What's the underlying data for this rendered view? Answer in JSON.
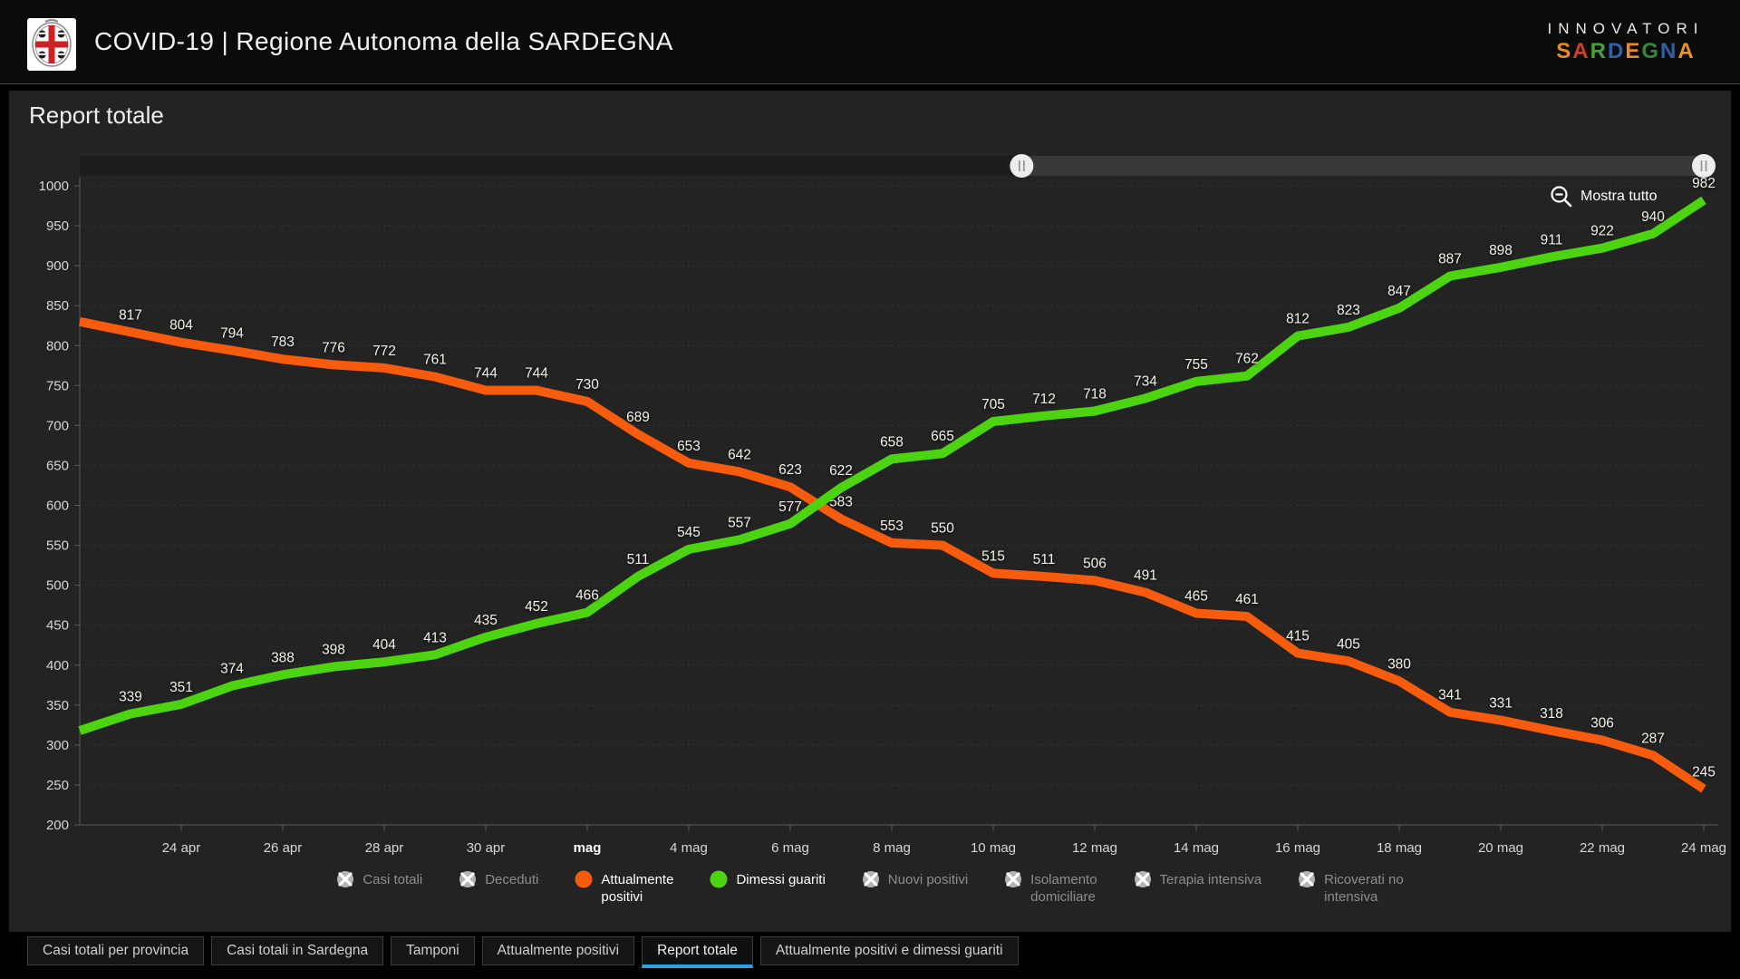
{
  "header": {
    "title": "COVID-19 | Regione Autonoma della SARDEGNA",
    "brand_line1": "INNOVATORI",
    "brand_letters": [
      {
        "ch": "S",
        "color": "#ef8b1d"
      },
      {
        "ch": "A",
        "color": "#d63c20"
      },
      {
        "ch": "R",
        "color": "#44a338"
      },
      {
        "ch": "D",
        "color": "#2d62a7"
      },
      {
        "ch": "E",
        "color": "#ef8b1d"
      },
      {
        "ch": "G",
        "color": "#2f8a33"
      },
      {
        "ch": "N",
        "color": "#2d62a7"
      },
      {
        "ch": "A",
        "color": "#e9941f"
      }
    ]
  },
  "page_title": "Report totale",
  "toolbar": {
    "show_all_label": "Mostra tutto"
  },
  "chart_data": {
    "type": "line",
    "title": "Report totale",
    "x": [
      "23 apr",
      "24 apr",
      "25 apr",
      "26 apr",
      "27 apr",
      "28 apr",
      "29 apr",
      "30 apr",
      "1 mag",
      "2 mag",
      "3 mag",
      "4 mag",
      "5 mag",
      "6 mag",
      "7 mag",
      "8 mag",
      "9 mag",
      "10 mag",
      "11 mag",
      "12 mag",
      "13 mag",
      "14 mag",
      "15 mag",
      "16 mag",
      "17 mag",
      "18 mag",
      "19 mag",
      "20 mag",
      "21 mag",
      "22 mag",
      "23 mag",
      "24 mag"
    ],
    "x_ticks": [
      {
        "i": 1,
        "label": "24 apr"
      },
      {
        "i": 3,
        "label": "26 apr"
      },
      {
        "i": 5,
        "label": "28 apr"
      },
      {
        "i": 7,
        "label": "30 apr"
      },
      {
        "i": 9,
        "label": "mag",
        "bold": true
      },
      {
        "i": 11,
        "label": "4 mag"
      },
      {
        "i": 13,
        "label": "6 mag"
      },
      {
        "i": 15,
        "label": "8 mag"
      },
      {
        "i": 17,
        "label": "10 mag"
      },
      {
        "i": 19,
        "label": "12 mag"
      },
      {
        "i": 21,
        "label": "14 mag"
      },
      {
        "i": 23,
        "label": "16 mag"
      },
      {
        "i": 25,
        "label": "18 mag"
      },
      {
        "i": 27,
        "label": "20 mag"
      },
      {
        "i": 29,
        "label": "22 mag"
      },
      {
        "i": 31,
        "label": "24 mag"
      }
    ],
    "ylim": [
      200,
      1000
    ],
    "y_ticks": [
      200,
      250,
      300,
      350,
      400,
      450,
      500,
      550,
      600,
      650,
      700,
      750,
      800,
      850,
      900,
      950,
      1000
    ],
    "grid": true,
    "legend_position": "bottom",
    "series": [
      {
        "name": "Attualmente positivi",
        "color": "#f75b0e",
        "lead_in_edge_value": 830,
        "values": [
          817,
          804,
          794,
          783,
          776,
          772,
          761,
          744,
          744,
          730,
          689,
          653,
          642,
          623,
          583,
          553,
          550,
          515,
          511,
          506,
          491,
          465,
          461,
          415,
          405,
          380,
          341,
          331,
          318,
          306,
          287,
          245
        ]
      },
      {
        "name": "Dimessi guariti",
        "color": "#4cd411",
        "lead_in_edge_value": 318,
        "values": [
          339,
          351,
          374,
          388,
          398,
          404,
          413,
          435,
          452,
          466,
          511,
          545,
          557,
          577,
          622,
          658,
          665,
          705,
          712,
          718,
          734,
          755,
          762,
          812,
          823,
          847,
          887,
          898,
          911,
          922,
          940,
          982
        ]
      }
    ],
    "scrollbar": {
      "range_start_frac": 0.58,
      "range_end_frac": 1.0
    }
  },
  "legend": {
    "items": [
      {
        "name": "Casi totali",
        "lines": [
          "Casi totali"
        ],
        "state": "disabled"
      },
      {
        "name": "Deceduti",
        "lines": [
          "Deceduti"
        ],
        "state": "disabled"
      },
      {
        "name": "Attualmente positivi",
        "lines": [
          "Attualmente",
          "positivi"
        ],
        "state": "active",
        "color": "#f75b0e"
      },
      {
        "name": "Dimessi guariti",
        "lines": [
          "Dimessi guariti"
        ],
        "state": "active",
        "color": "#4cd411"
      },
      {
        "name": "Nuovi positivi",
        "lines": [
          "Nuovi positivi"
        ],
        "state": "disabled"
      },
      {
        "name": "Isolamento domiciliare",
        "lines": [
          "Isolamento",
          "domiciliare"
        ],
        "state": "disabled"
      },
      {
        "name": "Terapia intensiva",
        "lines": [
          "Terapia intensiva"
        ],
        "state": "disabled"
      },
      {
        "name": "Ricoverati no intensiva",
        "lines": [
          "Ricoverati no",
          "intensiva"
        ],
        "state": "disabled"
      }
    ]
  },
  "tabs": {
    "items": [
      {
        "label": "Casi totali per provincia",
        "active": false
      },
      {
        "label": "Casi totali in Sardegna",
        "active": false
      },
      {
        "label": "Tamponi",
        "active": false
      },
      {
        "label": "Attualmente positivi",
        "active": false
      },
      {
        "label": "Report totale",
        "active": true
      },
      {
        "label": "Attualmente positivi e dimessi guariti",
        "active": false
      }
    ]
  }
}
